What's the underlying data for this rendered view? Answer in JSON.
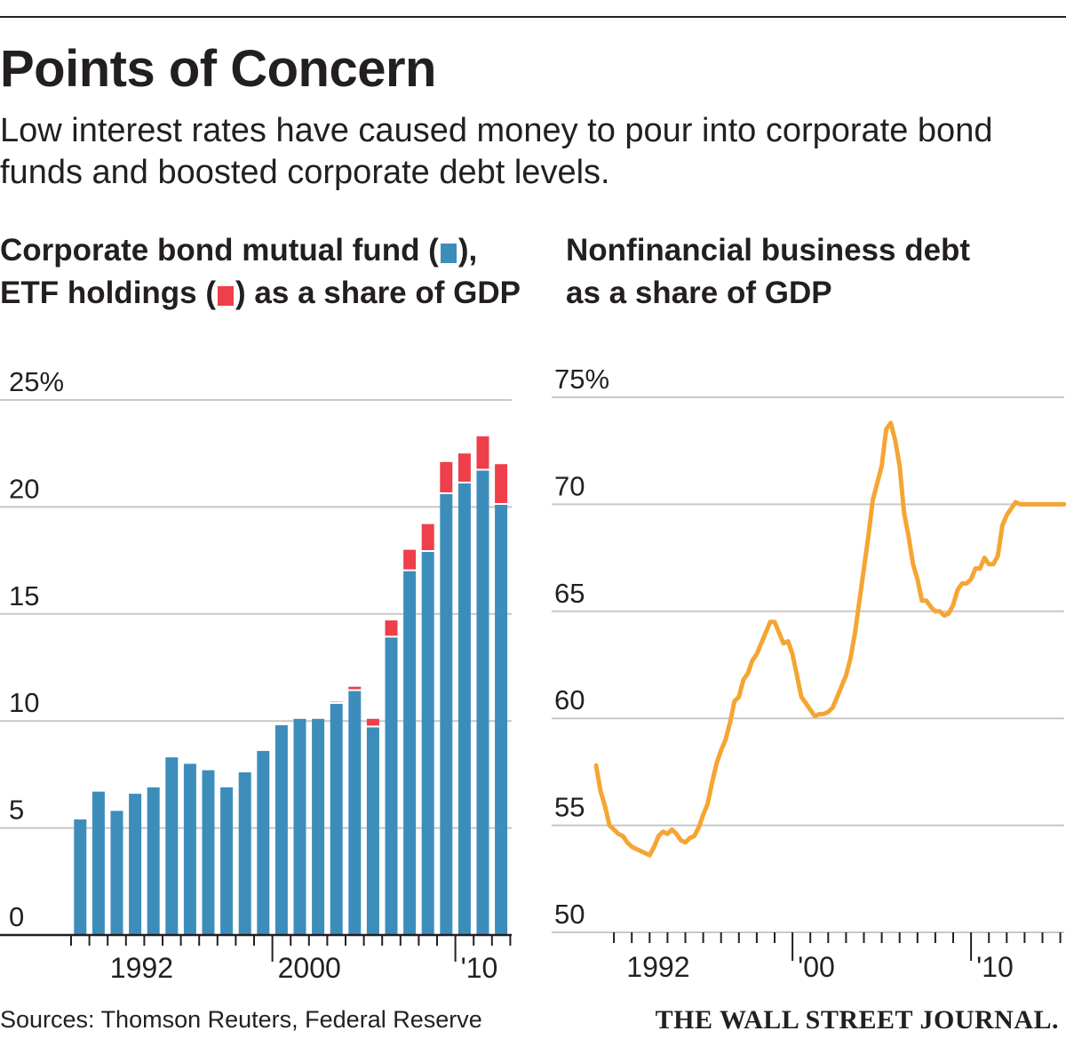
{
  "title": "Points of Concern",
  "subtitle": "Low interest rates have caused money to pour into corporate bond funds and boosted corporate debt levels.",
  "colors": {
    "mutual_fund": "#3d8dbb",
    "etf": "#ee3f4a",
    "line": "#f5a534",
    "grid": "#c8c8c8",
    "text": "#231f20"
  },
  "chart_data": [
    {
      "type": "bar",
      "stacked": true,
      "title_line1_prefix": "Corporate bond mutual fund (",
      "title_line1_suffix": "),",
      "title_line2_prefix": "ETF holdings (",
      "title_line2_suffix": ") as a share of GDP",
      "ylim": [
        0,
        25
      ],
      "yticks": [
        0,
        5,
        10,
        15,
        20,
        25
      ],
      "ytick_labels": [
        "0",
        "5",
        "10",
        "15",
        "20",
        "25%"
      ],
      "x_start_year": 1989,
      "x_end_year": 2014,
      "xtick_labels": [
        {
          "year": 1992,
          "label": "1992",
          "major": false
        },
        {
          "year": 2000,
          "label": "2000",
          "major": true
        },
        {
          "year": 2010,
          "label": "'10",
          "major": true
        }
      ],
      "categories": [
        1989,
        1990,
        1991,
        1992,
        1993,
        1994,
        1995,
        1996,
        1997,
        1998,
        1999,
        2000,
        2001,
        2002,
        2003,
        2004,
        2005,
        2006,
        2007,
        2008,
        2009,
        2010,
        2011,
        2012,
        2013,
        2014
      ],
      "series": [
        {
          "name": "Mutual fund",
          "color_key": "mutual_fund",
          "values": [
            5.4,
            6.7,
            5.8,
            6.6,
            6.9,
            8.3,
            8.0,
            7.7,
            6.9,
            7.6,
            8.6,
            9.8,
            10.1,
            10.1,
            10.8,
            11.4,
            9.7,
            13.9,
            17.0,
            17.9,
            20.6,
            21.1,
            21.7,
            20.1,
            0,
            0
          ]
        },
        {
          "name": "ETF holdings",
          "color_key": "etf",
          "values": [
            0,
            0,
            0,
            0,
            0,
            0,
            0,
            0,
            0,
            0,
            0,
            0,
            0,
            0,
            0.1,
            0.2,
            0.4,
            0.8,
            1.0,
            1.3,
            1.5,
            1.4,
            1.6,
            1.9,
            0,
            0
          ]
        }
      ]
    },
    {
      "type": "line",
      "title_line1": "Nonfinancial business debt",
      "title_line2": "as a share of GDP",
      "ylim": [
        50,
        75
      ],
      "yticks": [
        50,
        55,
        60,
        65,
        70,
        75
      ],
      "ytick_labels": [
        "50",
        "55",
        "60",
        "65",
        "70",
        "75%"
      ],
      "xtick_labels": [
        {
          "year": 1992,
          "label": "1992",
          "major": false
        },
        {
          "year": 2000,
          "label": "'00",
          "major": true
        },
        {
          "year": 2010,
          "label": "'10",
          "major": true
        }
      ],
      "x": [
        1989.0,
        1989.25,
        1989.5,
        1989.75,
        1990.0,
        1990.25,
        1990.5,
        1990.75,
        1991.0,
        1991.25,
        1991.5,
        1991.75,
        1992.0,
        1992.25,
        1992.5,
        1992.75,
        1993.0,
        1993.25,
        1993.5,
        1993.75,
        1994.0,
        1994.25,
        1994.5,
        1994.75,
        1995.0,
        1995.25,
        1995.5,
        1995.75,
        1996.0,
        1996.25,
        1996.5,
        1996.75,
        1997.0,
        1997.25,
        1997.5,
        1997.75,
        1998.0,
        1998.25,
        1998.5,
        1998.75,
        1999.0,
        1999.25,
        1999.5,
        1999.75,
        2000.0,
        2000.25,
        2000.5,
        2000.75,
        2001.0,
        2001.25,
        2001.5,
        2001.75,
        2002.0,
        2002.25,
        2002.5,
        2002.75,
        2003.0,
        2003.25,
        2003.5,
        2003.75,
        2004.0,
        2004.25,
        2004.5,
        2004.75,
        2005.0,
        2005.25,
        2005.5,
        2005.75,
        2006.0,
        2006.25,
        2006.5,
        2006.75,
        2007.0,
        2007.25,
        2007.5,
        2007.75,
        2008.0,
        2008.25,
        2008.5,
        2008.75,
        2009.0,
        2009.25,
        2009.5,
        2009.75,
        2010.0,
        2010.25,
        2010.5,
        2010.75,
        2011.0,
        2011.25,
        2011.5,
        2011.75,
        2012.0,
        2012.25,
        2012.5,
        2012.75,
        2013.0,
        2013.25,
        2013.5,
        2013.75,
        2014.0,
        2014.25,
        2014.5,
        2014.75,
        2015.0,
        2015.25
      ],
      "values": [
        57.8,
        56.6,
        55.9,
        55.0,
        54.8,
        54.6,
        54.5,
        54.2,
        54.0,
        53.9,
        53.8,
        53.7,
        53.6,
        54.0,
        54.5,
        54.7,
        54.6,
        54.8,
        54.6,
        54.3,
        54.2,
        54.4,
        54.5,
        54.9,
        55.5,
        56.0,
        57.0,
        57.9,
        58.5,
        59.0,
        59.8,
        60.8,
        61.0,
        61.8,
        62.1,
        62.7,
        63.0,
        63.5,
        64.0,
        64.5,
        64.5,
        64.0,
        63.5,
        63.6,
        63.0,
        62.0,
        61.0,
        60.7,
        60.4,
        60.1,
        60.2,
        60.2,
        60.3,
        60.5,
        61.0,
        61.5,
        62.0,
        62.8,
        64.0,
        65.5,
        67.0,
        68.5,
        70.2,
        71.0,
        71.8,
        73.5,
        73.8,
        73.0,
        71.8,
        69.6,
        68.5,
        67.2,
        66.5,
        65.5,
        65.5,
        65.2,
        65.0,
        65.0,
        64.8,
        64.9,
        65.3,
        66.0,
        66.3,
        66.3,
        66.5,
        67.0,
        67.0,
        67.5,
        67.2,
        67.2,
        67.6,
        69.0,
        69.5,
        69.8,
        70.1,
        70.0,
        70.0,
        70.0,
        70.0,
        70.0,
        70.0,
        70.0,
        70.0,
        70.0,
        70.0,
        70.0
      ]
    }
  ],
  "footer": {
    "sources": "Sources: Thomson Reuters,  Federal Reserve",
    "publisher": "THE WALL STREET JOURNAL."
  }
}
